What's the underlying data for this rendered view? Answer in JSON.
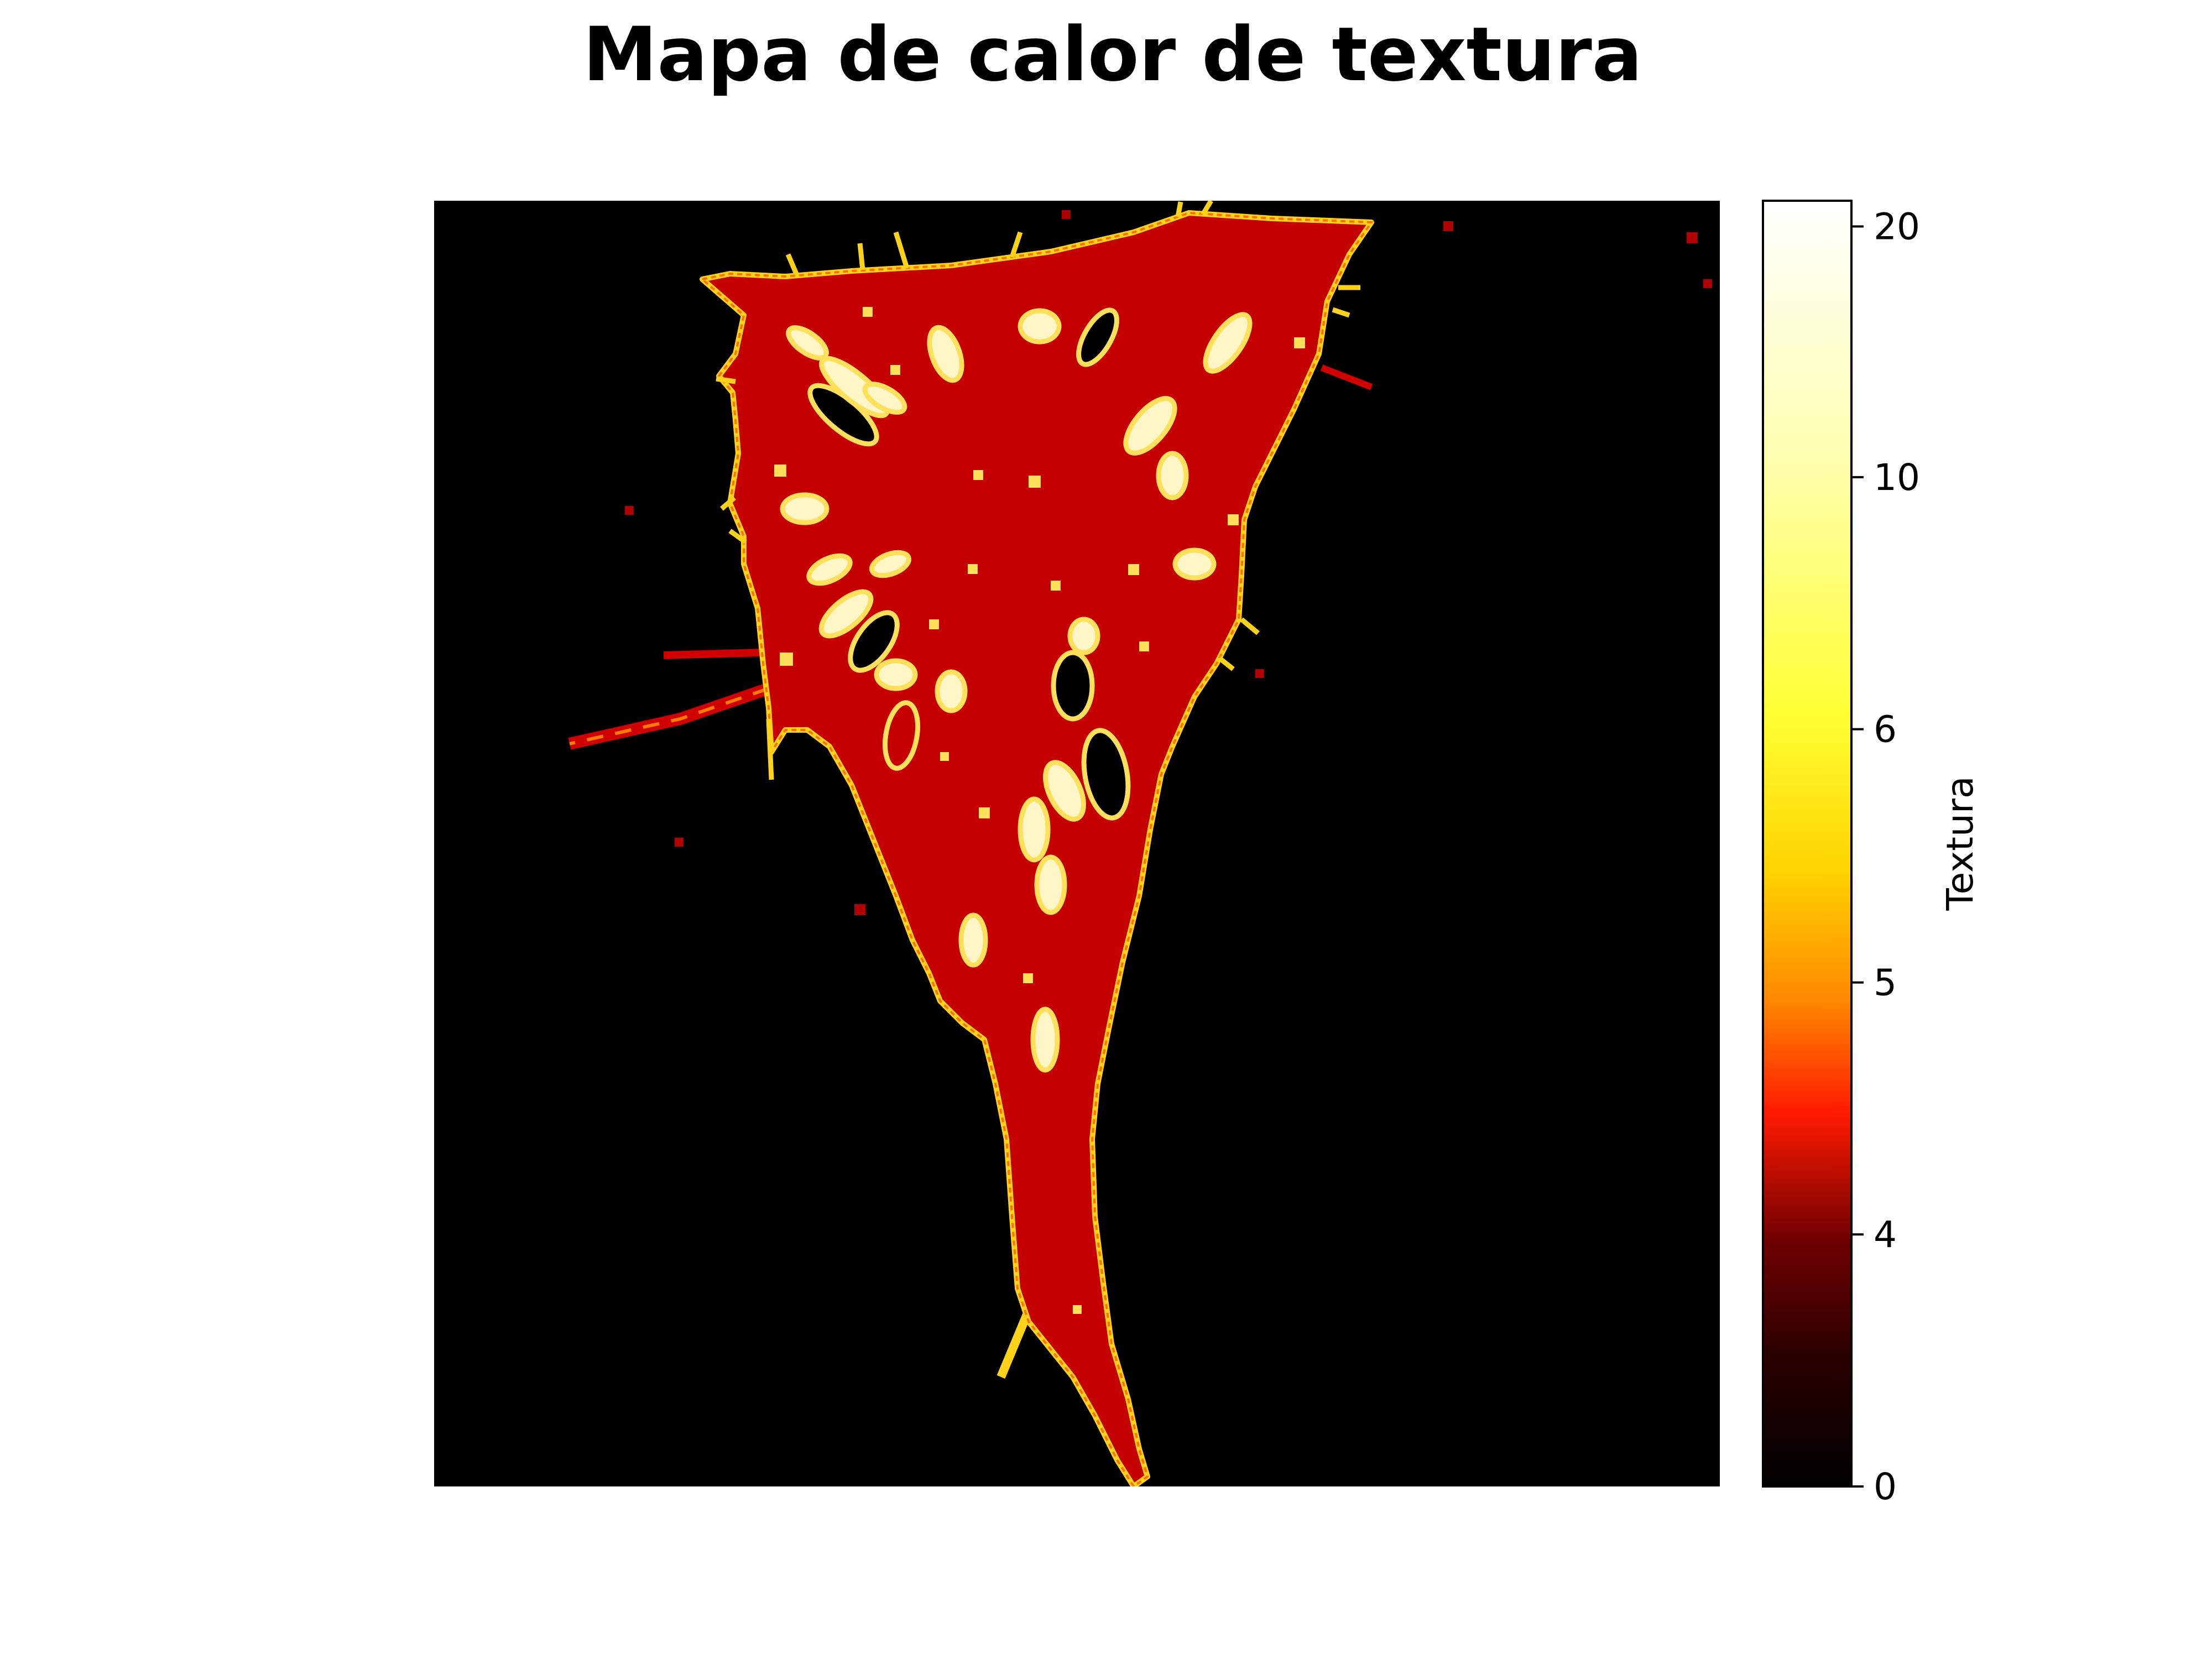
{
  "chart_data": {
    "type": "heatmap",
    "title": "Mapa de calor de textura",
    "xlabel": "",
    "ylabel": "",
    "axes_visible": false,
    "grid": false,
    "colormap": "hot",
    "colorbar": {
      "label": "Textura",
      "position": "right",
      "ticks": [
        0,
        4,
        5,
        6,
        10,
        20
      ],
      "tick_labels": [
        "0",
        "4",
        "5",
        "6",
        "10",
        "20"
      ],
      "range": [
        0,
        21
      ],
      "note": "non-linear (stretched) color scale"
    },
    "background_value": 0,
    "cell_interior_value": 4.3,
    "edge_value": 10,
    "hotspot_max_value": 21
  },
  "colors": {
    "background": "#000000",
    "cell_fill": "#c40000",
    "edge": "#ffd21a",
    "hotspot_ring": "#ffe05a",
    "hotspot_core": "#fffbe8",
    "frame": "#000000"
  },
  "icons": {
    "colorbar": "gradient-bar"
  }
}
